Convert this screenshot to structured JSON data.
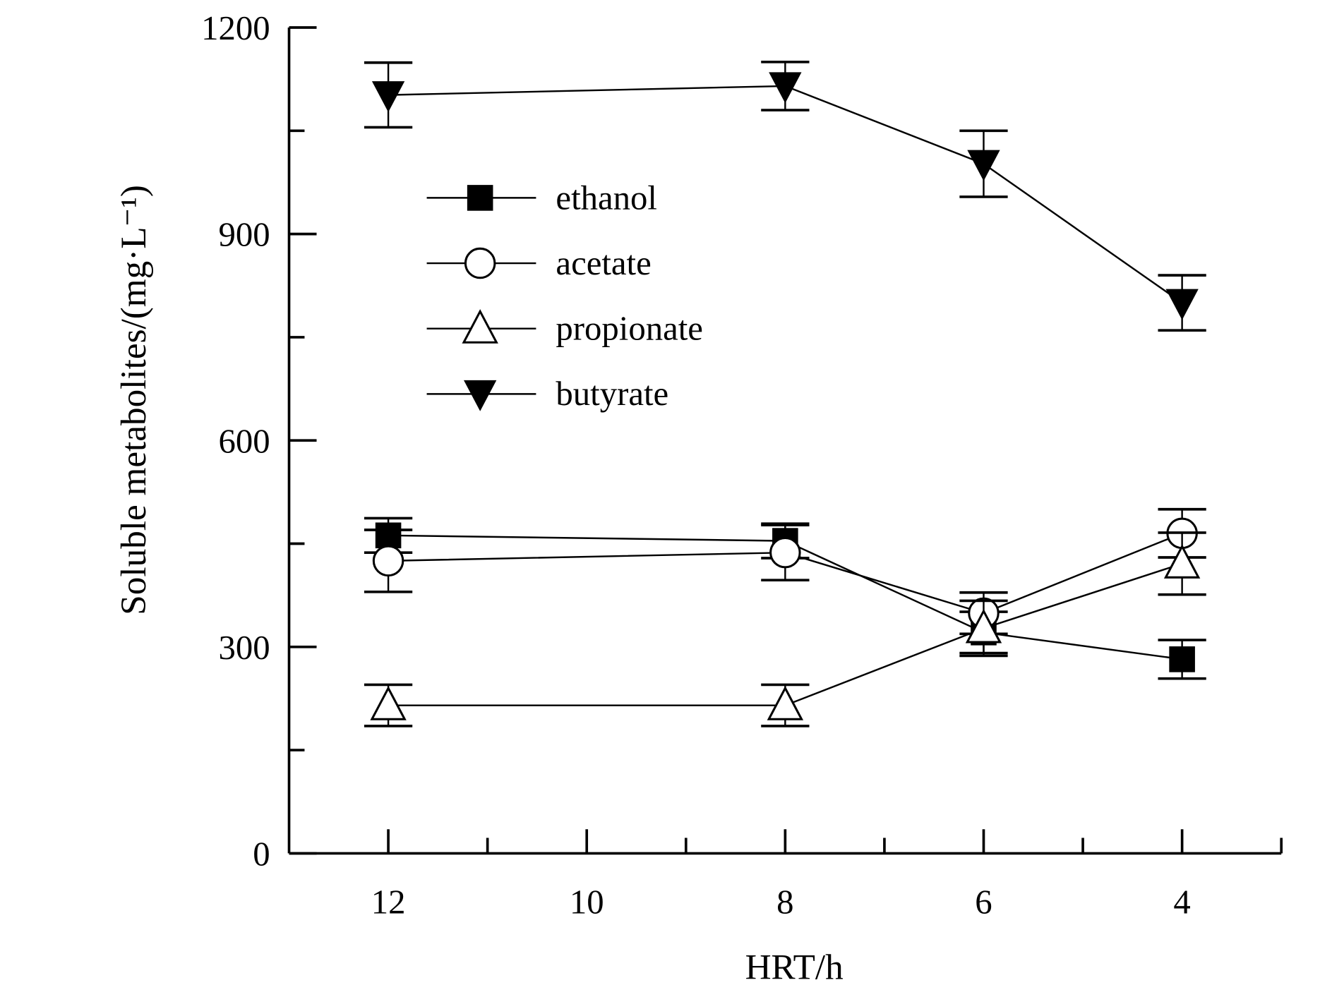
{
  "chart_data": {
    "type": "line",
    "title": "",
    "xlabel": "HRT/h",
    "ylabel": "Soluble metabolites/(mg·L⁻¹)",
    "xlim": [
      13,
      3
    ],
    "ylim": [
      0,
      1200
    ],
    "x_reversed": true,
    "x_ticks": [
      12,
      10,
      8,
      6,
      4
    ],
    "y_ticks": [
      0,
      300,
      600,
      900,
      1200
    ],
    "grid": false,
    "legend_position": "upper-left",
    "x": [
      12,
      8,
      6,
      4
    ],
    "series": [
      {
        "name": "ethanol",
        "marker": "filled-square",
        "values": [
          462,
          454,
          321,
          282
        ],
        "errors": [
          25,
          25,
          30,
          28
        ]
      },
      {
        "name": "acetate",
        "marker": "open-circle",
        "values": [
          425,
          437,
          349,
          465
        ],
        "errors": [
          45,
          40,
          30,
          35
        ]
      },
      {
        "name": "propionate",
        "marker": "open-triangle-up",
        "values": [
          215,
          215,
          327,
          421
        ],
        "errors": [
          30,
          30,
          40,
          45
        ]
      },
      {
        "name": "butyrate",
        "marker": "filled-triangle-down",
        "values": [
          1102,
          1115,
          1002,
          800
        ],
        "errors": [
          47,
          35,
          48,
          40
        ]
      }
    ]
  }
}
